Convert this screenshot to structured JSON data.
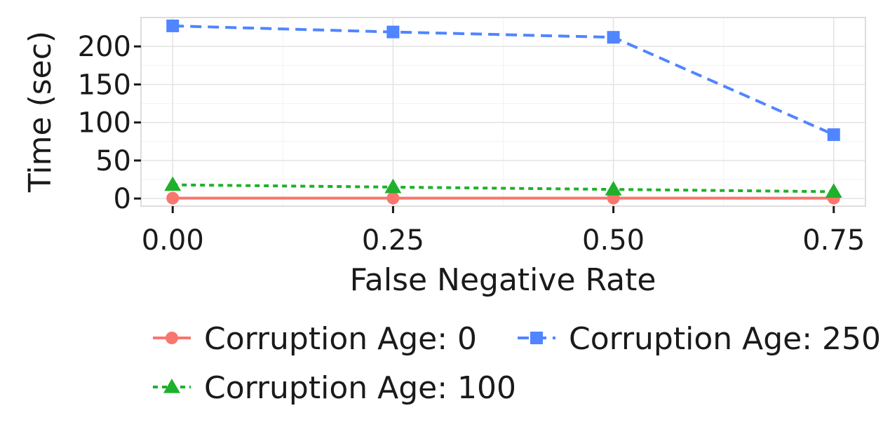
{
  "chart_data": {
    "type": "line",
    "xlabel": "False Negative Rate",
    "ylabel": "Time (sec)",
    "x": [
      0.0,
      0.25,
      0.5,
      0.75
    ],
    "x_tick_labels": [
      "0.00",
      "0.25",
      "0.50",
      "0.75"
    ],
    "y_ticks": [
      0,
      50,
      100,
      150,
      200
    ],
    "y_tick_labels": [
      "0",
      "50",
      "100",
      "150",
      "200"
    ],
    "xlim": [
      -0.036,
      0.786
    ],
    "ylim": [
      -10,
      238
    ],
    "grid": true,
    "legend_position": "bottom",
    "series": [
      {
        "name": "Corruption Age: 0",
        "values": [
          0.5,
          0.5,
          0.5,
          0.5
        ],
        "color": "#F8766D",
        "marker": "circle",
        "line": "solid"
      },
      {
        "name": "Corruption Age: 100",
        "values": [
          18,
          15,
          12,
          9
        ],
        "color": "#1FB02C",
        "marker": "triangle",
        "line": "dotted"
      },
      {
        "name": "Corruption Age: 250",
        "values": [
          227,
          219,
          212,
          84
        ],
        "color": "#5085FF",
        "marker": "square",
        "line": "dashed"
      }
    ]
  }
}
